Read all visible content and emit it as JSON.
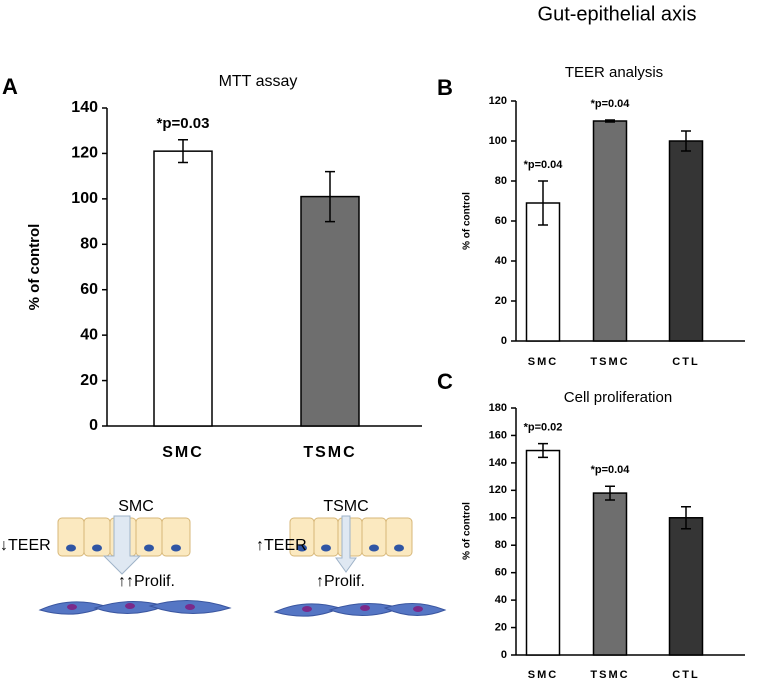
{
  "figure_title": "Gut-epithelial axis",
  "chart_data": [
    {
      "type": "bar",
      "panel_label": "A",
      "title": "MTT assay",
      "y_label": "% of control",
      "categories": [
        "SMC",
        "TSMC"
      ],
      "values": [
        121,
        101
      ],
      "errors": [
        5,
        11
      ],
      "colors": [
        "#ffffff",
        "#6e6e6e"
      ],
      "ylim": [
        0,
        140
      ],
      "yticks": [
        0,
        20,
        40,
        60,
        80,
        100,
        120,
        140
      ],
      "annotations": [
        {
          "text": "*p=0.03",
          "category": "SMC"
        }
      ]
    },
    {
      "type": "bar",
      "panel_label": "B",
      "title": "TEER analysis",
      "y_label": "% of control",
      "categories": [
        "SMC",
        "TSMC",
        "CTL"
      ],
      "values": [
        69,
        110,
        100
      ],
      "errors": [
        11,
        0.5,
        5
      ],
      "colors": [
        "#ffffff",
        "#6e6e6e",
        "#353535"
      ],
      "ylim": [
        0,
        120
      ],
      "yticks": [
        0,
        20,
        40,
        60,
        80,
        100,
        120
      ],
      "annotations": [
        {
          "text": "*p=0.04",
          "category": "SMC"
        },
        {
          "text": "*p=0.04",
          "category": "TSMC"
        }
      ]
    },
    {
      "type": "bar",
      "panel_label": "C",
      "title": "Cell proliferation",
      "y_label": "% of control",
      "categories": [
        "SMC",
        "TSMC",
        "CTL"
      ],
      "values": [
        149,
        118,
        100
      ],
      "errors": [
        5,
        5,
        8
      ],
      "colors": [
        "#ffffff",
        "#6e6e6e",
        "#353535"
      ],
      "ylim": [
        0,
        180
      ],
      "yticks": [
        0,
        20,
        40,
        60,
        80,
        100,
        120,
        140,
        160,
        180
      ],
      "annotations": [
        {
          "text": "*p=0.02",
          "category": "SMC"
        },
        {
          "text": "*p=0.04",
          "category": "TSMC"
        }
      ]
    }
  ],
  "diagram": {
    "left": {
      "label": "SMC",
      "teer": "↓TEER",
      "prolif": "↑↑Prolif."
    },
    "right": {
      "label": "TSMC",
      "teer": "↑TEER",
      "prolif": "↑Prolif."
    }
  }
}
